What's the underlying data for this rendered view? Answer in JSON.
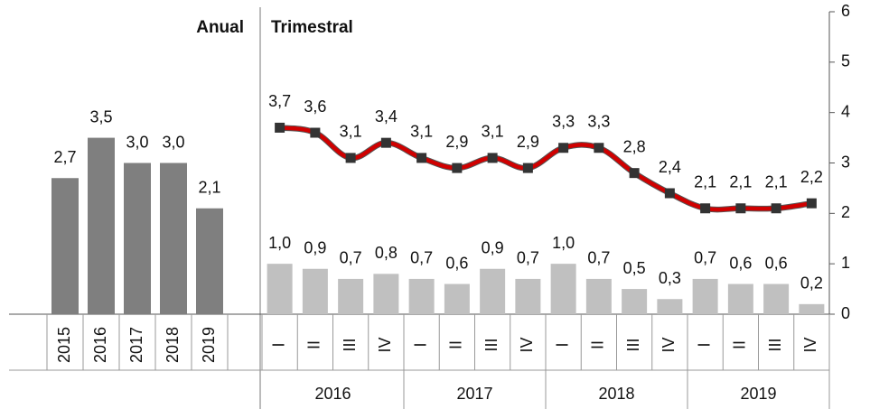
{
  "chart_data": {
    "type": "panels",
    "ylim": [
      0,
      6
    ],
    "yticks": [
      0,
      1,
      2,
      3,
      4,
      5,
      6
    ],
    "panels": [
      {
        "type": "bar",
        "title": "Anual",
        "categories": [
          "2015",
          "2016",
          "2017",
          "2018",
          "2019"
        ],
        "values": [
          2.7,
          3.5,
          3.0,
          3.0,
          2.1
        ],
        "value_labels": [
          "2,7",
          "3,5",
          "3,0",
          "3,0",
          "2,1"
        ],
        "color": "#7f7f7f"
      },
      {
        "type": "combo",
        "title": "Trimestral",
        "categories": [
          "I",
          "II",
          "III",
          "IV",
          "I",
          "II",
          "III",
          "IV",
          "I",
          "II",
          "III",
          "IV",
          "I",
          "II",
          "III",
          "IV"
        ],
        "groups": [
          "2016",
          "2017",
          "2018",
          "2019"
        ],
        "series": [
          {
            "type": "bar",
            "color": "#c0c0c0",
            "values": [
              1.0,
              0.9,
              0.7,
              0.8,
              0.7,
              0.6,
              0.9,
              0.7,
              1.0,
              0.7,
              0.5,
              0.3,
              0.7,
              0.6,
              0.6,
              0.2
            ],
            "value_labels": [
              "1,0",
              "0,9",
              "0,7",
              "0,8",
              "0,7",
              "0,6",
              "0,9",
              "0,7",
              "1,0",
              "0,7",
              "0,5",
              "0,3",
              "0,7",
              "0,6",
              "0,6",
              "0,2"
            ]
          },
          {
            "type": "line",
            "color": "#d00000",
            "marker_color": "#333333",
            "values": [
              3.7,
              3.6,
              3.1,
              3.4,
              3.1,
              2.9,
              3.1,
              2.9,
              3.3,
              3.3,
              2.8,
              2.4,
              2.1,
              2.1,
              2.1,
              2.2
            ],
            "value_labels": [
              "3,7",
              "3,6",
              "3,1",
              "3,4",
              "3,1",
              "2,9",
              "3,1",
              "2,9",
              "3,3",
              "3,3",
              "2,8",
              "2,4",
              "2,1",
              "2,1",
              "2,1",
              "2,2"
            ]
          }
        ]
      }
    ]
  }
}
